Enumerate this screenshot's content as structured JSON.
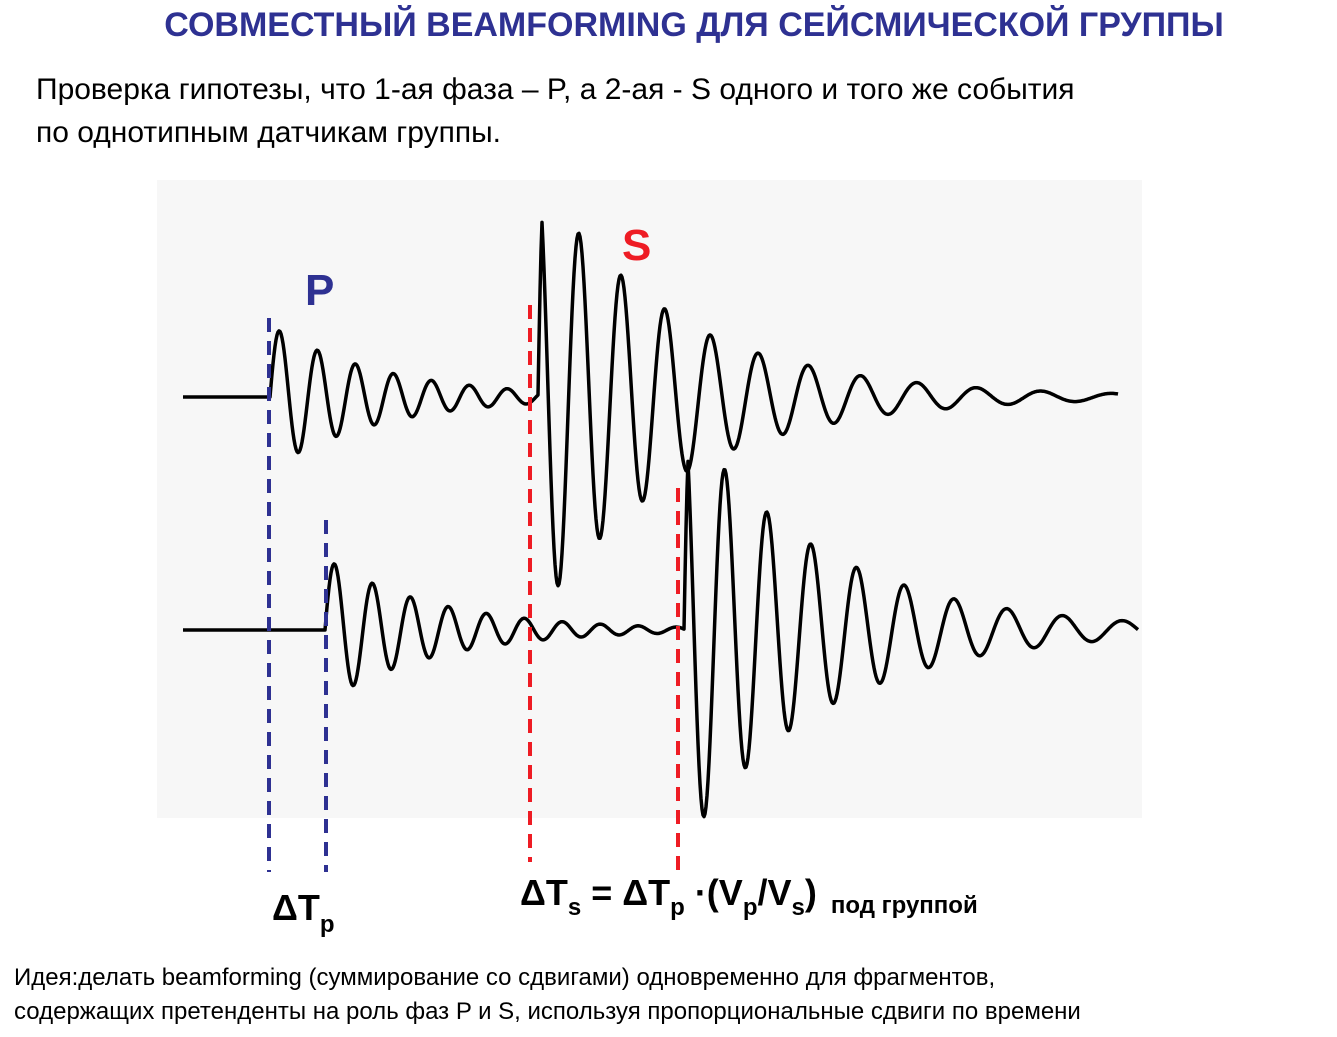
{
  "header": {
    "title": "СОВМЕСТНЫЙ BEAMFORMING ДЛЯ СЕЙСМИЧЕСКОЙ ГРУППЫ",
    "subtitle": [
      "Проверка гипотезы, что 1-ая фаза – P, а 2-ая - S одного и того же события",
      "по однотипным датчикам группы."
    ]
  },
  "labels": {
    "p": "P",
    "s": "S"
  },
  "delta_tp": {
    "base": "ΔT",
    "sub": "p"
  },
  "delta_ts": [
    "ΔT",
    "s",
    " = ΔT",
    "p",
    " ·(V",
    "p",
    "/V",
    "s",
    ")",
    "под группой"
  ],
  "footer": [
    "Идея:делать beamforming (суммирование со сдвигами) одновременно для фрагментов,",
    "содержащих претенденты на роль фаз P и S, используя пропорциональные сдвиги по времени"
  ]
}
